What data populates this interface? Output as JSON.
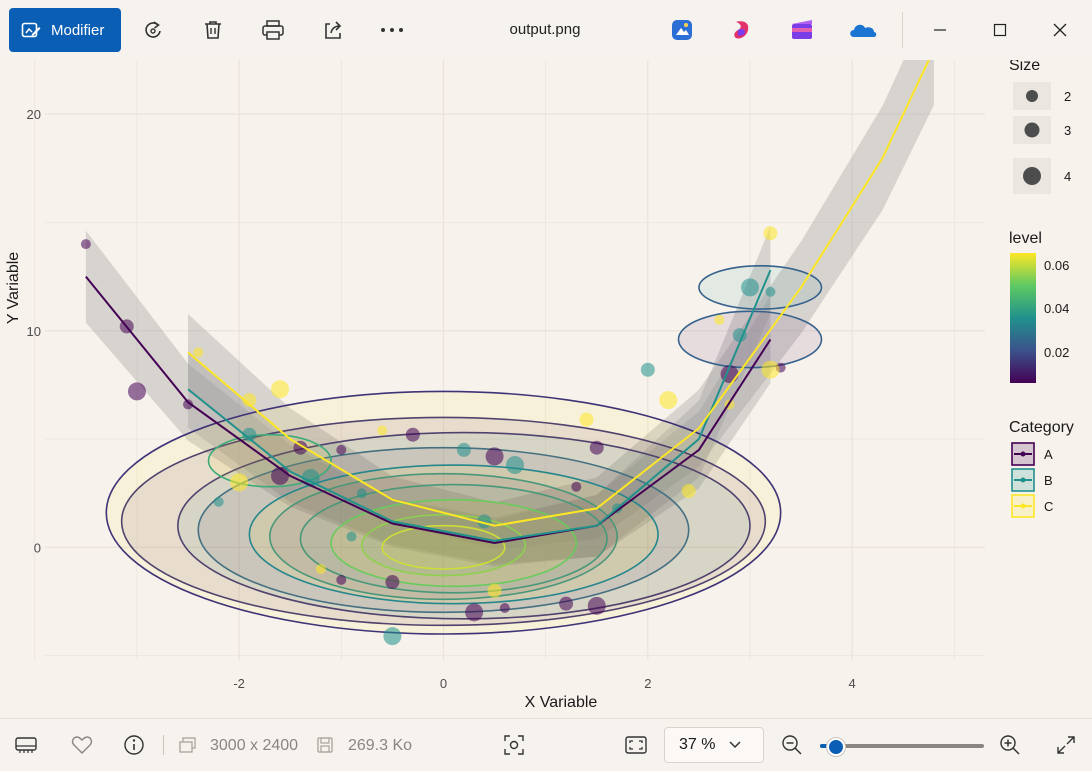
{
  "toolbar": {
    "edit_label": "Modifier",
    "file_name": "output.png",
    "icons": [
      "rotate-icon",
      "delete-icon",
      "print-icon",
      "share-icon",
      "more-icon"
    ],
    "apps": [
      "photo-editor-icon",
      "copilot-icon",
      "clipchamp-icon",
      "onedrive-icon"
    ]
  },
  "status": {
    "dimensions": "3000 x 2400",
    "file_size": "269.3 Ko",
    "zoom": "37 %",
    "zoom_fraction": 0.1
  },
  "chart_data": {
    "type": "scatter",
    "title": "",
    "xlabel": "X Variable",
    "ylabel": "Y Variable",
    "xlim": [
      -3.9,
      5.3
    ],
    "ylim": [
      -5.2,
      22.5
    ],
    "x_ticks": [
      -2,
      0,
      2,
      4
    ],
    "y_ticks": [
      0,
      10,
      20
    ],
    "grid": true,
    "legend_placement": "right",
    "legends": {
      "size": {
        "title": "Size",
        "values": [
          2,
          3,
          4
        ]
      },
      "level": {
        "title": "level",
        "labels": [
          "0.06",
          "0.04",
          "0.02"
        ],
        "colors": [
          "#fde725",
          "#5ec962",
          "#21918c",
          "#3b528b",
          "#440154"
        ]
      },
      "category": {
        "title": "Category",
        "entries": [
          "A",
          "B",
          "C"
        ],
        "colors": [
          "#440154",
          "#21918c",
          "#fde725"
        ]
      }
    },
    "series": [
      {
        "name": "A",
        "color": "#440154",
        "points": [
          [
            -3.5,
            14
          ],
          [
            -3.1,
            10.2
          ],
          [
            -3.0,
            7.2
          ],
          [
            -2.5,
            6.6
          ],
          [
            -1.4,
            4.6
          ],
          [
            -1.6,
            3.3
          ],
          [
            -1.0,
            4.5
          ],
          [
            -0.3,
            5.2
          ],
          [
            0.5,
            4.2
          ],
          [
            1.3,
            2.8
          ],
          [
            1.5,
            4.6
          ],
          [
            2.8,
            8
          ],
          [
            3.3,
            8.3
          ],
          [
            1.2,
            -2.6
          ],
          [
            1.5,
            -2.7
          ],
          [
            -1.0,
            -1.5
          ],
          [
            -0.5,
            -1.6
          ],
          [
            0.3,
            -3.0
          ],
          [
            0.6,
            -2.8
          ]
        ],
        "fit": [
          [
            -3.5,
            12.5
          ],
          [
            -2.5,
            6.7
          ],
          [
            -1.5,
            3.3
          ],
          [
            -0.5,
            1.1
          ],
          [
            0.5,
            0.2
          ],
          [
            1.5,
            1.0
          ],
          [
            2.5,
            4.5
          ],
          [
            3.2,
            9.6
          ]
        ]
      },
      {
        "name": "B",
        "color": "#21918c",
        "points": [
          [
            -2.2,
            2.1
          ],
          [
            -1.9,
            5.2
          ],
          [
            -1.3,
            3.2
          ],
          [
            -0.8,
            2.5
          ],
          [
            0.2,
            4.5
          ],
          [
            0.7,
            3.8
          ],
          [
            1.7,
            1.8
          ],
          [
            2.0,
            8.2
          ],
          [
            3.0,
            12
          ],
          [
            3.2,
            11.8
          ],
          [
            2.9,
            9.8
          ],
          [
            -0.5,
            -4.1
          ],
          [
            -0.9,
            0.5
          ],
          [
            0.4,
            1.2
          ]
        ],
        "fit": [
          [
            -2.5,
            7.3
          ],
          [
            -1.5,
            3.5
          ],
          [
            -0.5,
            1.2
          ],
          [
            0.5,
            0.3
          ],
          [
            1.5,
            1.0
          ],
          [
            2.5,
            5.0
          ],
          [
            3.2,
            12.8
          ]
        ]
      },
      {
        "name": "C",
        "color": "#fde725",
        "points": [
          [
            -2.4,
            9
          ],
          [
            -1.9,
            6.8
          ],
          [
            -1.6,
            7.3
          ],
          [
            -0.6,
            5.4
          ],
          [
            1.4,
            5.9
          ],
          [
            2.2,
            6.8
          ],
          [
            2.7,
            10.5
          ],
          [
            3.2,
            14.5
          ],
          [
            3.2,
            8.2
          ],
          [
            2.8,
            6.6
          ],
          [
            2.4,
            2.6
          ],
          [
            -2.0,
            3.0
          ],
          [
            -1.2,
            -1.0
          ],
          [
            0.5,
            -2.0
          ]
        ],
        "fit": [
          [
            -2.5,
            9.0
          ],
          [
            -1.5,
            5.0
          ],
          [
            -0.5,
            2.2
          ],
          [
            0.5,
            1.0
          ],
          [
            1.5,
            1.8
          ],
          [
            2.5,
            5.5
          ],
          [
            3.5,
            12
          ],
          [
            4.3,
            18
          ],
          [
            4.8,
            23
          ]
        ]
      }
    ],
    "density_contours": [
      {
        "category": "A",
        "level": 0.01,
        "center": [
          0.0,
          1.2
        ],
        "rx": 3.15,
        "ry": 4.8
      },
      {
        "category": "A",
        "level": 0.02,
        "center": [
          0.0,
          0.8
        ],
        "rx": 2.4,
        "ry": 3.8
      },
      {
        "category": "A",
        "level": 0.03,
        "center": [
          0.0,
          0.5
        ],
        "rx": 1.7,
        "ry": 2.9
      },
      {
        "category": "B",
        "level": 0.01,
        "center": [
          0.2,
          1.0
        ],
        "rx": 2.8,
        "ry": 4.3
      },
      {
        "category": "B",
        "level": 0.03,
        "center": [
          0.1,
          0.4
        ],
        "rx": 1.5,
        "ry": 2.5
      },
      {
        "category": "B",
        "level": 0.05,
        "center": [
          0.0,
          0.1
        ],
        "rx": 0.8,
        "ry": 1.4
      },
      {
        "category": "C",
        "level": 0.01,
        "center": [
          0.0,
          1.6
        ],
        "rx": 3.3,
        "ry": 5.6
      },
      {
        "category": "C",
        "level": 0.03,
        "center": [
          0.1,
          0.6
        ],
        "rx": 2.0,
        "ry": 3.2
      },
      {
        "category": "C",
        "level": 0.05,
        "center": [
          0.1,
          0.2
        ],
        "rx": 1.2,
        "ry": 2.0
      },
      {
        "category": "C",
        "level": 0.06,
        "center": [
          0.0,
          0.0
        ],
        "rx": 0.6,
        "ry": 1.0
      },
      {
        "category": "C",
        "level": 0.04,
        "center": [
          -1.7,
          4.0
        ],
        "rx": 0.6,
        "ry": 1.2
      },
      {
        "category": "B",
        "level": 0.02,
        "center": [
          3.1,
          12.0
        ],
        "rx": 0.6,
        "ry": 1.0
      },
      {
        "category": "A",
        "level": 0.02,
        "center": [
          3.0,
          9.6
        ],
        "rx": 0.7,
        "ry": 1.3
      }
    ]
  }
}
